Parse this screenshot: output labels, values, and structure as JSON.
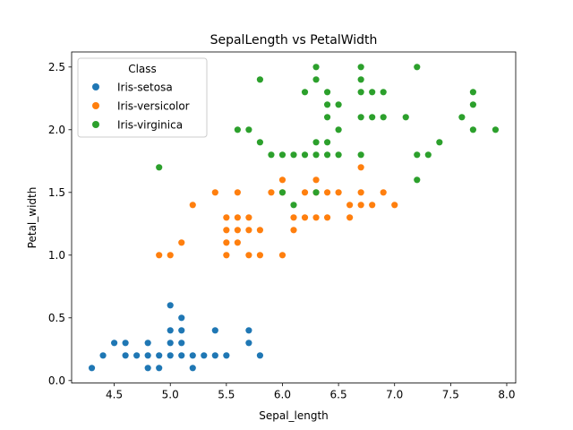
{
  "chart_data": {
    "type": "scatter",
    "title": "SepalLength vs PetalWidth",
    "xlabel": "Sepal_length",
    "ylabel": "Petal_width",
    "xlim": [
      4.12,
      8.08
    ],
    "ylim": [
      -0.02,
      2.62
    ],
    "xticks": [
      4.5,
      5.0,
      5.5,
      6.0,
      6.5,
      7.0,
      7.5,
      8.0
    ],
    "yticks": [
      0.0,
      0.5,
      1.0,
      1.5,
      2.0,
      2.5
    ],
    "legend": {
      "title": "Class",
      "position": "top-left"
    },
    "grid": false,
    "series": [
      {
        "name": "Iris-setosa",
        "color": "#1f77b4",
        "points": [
          [
            4.3,
            0.1
          ],
          [
            4.4,
            0.2
          ],
          [
            4.5,
            0.3
          ],
          [
            4.6,
            0.2
          ],
          [
            4.6,
            0.3
          ],
          [
            4.7,
            0.2
          ],
          [
            4.8,
            0.1
          ],
          [
            4.8,
            0.2
          ],
          [
            4.8,
            0.3
          ],
          [
            4.9,
            0.1
          ],
          [
            4.9,
            0.2
          ],
          [
            5.0,
            0.2
          ],
          [
            5.0,
            0.3
          ],
          [
            5.0,
            0.4
          ],
          [
            5.0,
            0.6
          ],
          [
            5.1,
            0.2
          ],
          [
            5.1,
            0.3
          ],
          [
            5.1,
            0.4
          ],
          [
            5.1,
            0.5
          ],
          [
            5.2,
            0.1
          ],
          [
            5.2,
            0.2
          ],
          [
            5.3,
            0.2
          ],
          [
            5.4,
            0.2
          ],
          [
            5.4,
            0.4
          ],
          [
            5.5,
            0.2
          ],
          [
            5.7,
            0.3
          ],
          [
            5.7,
            0.4
          ],
          [
            5.8,
            0.2
          ]
        ]
      },
      {
        "name": "Iris-versicolor",
        "color": "#ff7f0e",
        "points": [
          [
            4.9,
            1.0
          ],
          [
            5.0,
            1.0
          ],
          [
            5.1,
            1.1
          ],
          [
            5.2,
            1.4
          ],
          [
            5.4,
            1.5
          ],
          [
            5.5,
            1.0
          ],
          [
            5.5,
            1.1
          ],
          [
            5.5,
            1.2
          ],
          [
            5.5,
            1.3
          ],
          [
            5.6,
            1.1
          ],
          [
            5.6,
            1.2
          ],
          [
            5.6,
            1.3
          ],
          [
            5.6,
            1.5
          ],
          [
            5.7,
            1.0
          ],
          [
            5.7,
            1.2
          ],
          [
            5.7,
            1.3
          ],
          [
            5.8,
            1.0
          ],
          [
            5.8,
            1.2
          ],
          [
            5.9,
            1.5
          ],
          [
            6.0,
            1.0
          ],
          [
            6.0,
            1.5
          ],
          [
            6.0,
            1.6
          ],
          [
            6.1,
            1.2
          ],
          [
            6.1,
            1.3
          ],
          [
            6.2,
            1.3
          ],
          [
            6.2,
            1.5
          ],
          [
            6.3,
            1.3
          ],
          [
            6.3,
            1.5
          ],
          [
            6.3,
            1.6
          ],
          [
            6.4,
            1.3
          ],
          [
            6.4,
            1.5
          ],
          [
            6.5,
            1.5
          ],
          [
            6.6,
            1.3
          ],
          [
            6.6,
            1.4
          ],
          [
            6.7,
            1.4
          ],
          [
            6.7,
            1.5
          ],
          [
            6.7,
            1.7
          ],
          [
            6.8,
            1.4
          ],
          [
            6.9,
            1.5
          ],
          [
            7.0,
            1.4
          ]
        ]
      },
      {
        "name": "Iris-virginica",
        "color": "#2ca02c",
        "points": [
          [
            4.9,
            1.7
          ],
          [
            5.6,
            2.0
          ],
          [
            5.7,
            2.0
          ],
          [
            5.8,
            1.9
          ],
          [
            5.8,
            2.4
          ],
          [
            5.9,
            1.8
          ],
          [
            6.0,
            1.5
          ],
          [
            6.0,
            1.8
          ],
          [
            6.1,
            1.4
          ],
          [
            6.1,
            1.8
          ],
          [
            6.2,
            1.8
          ],
          [
            6.2,
            2.3
          ],
          [
            6.3,
            1.5
          ],
          [
            6.3,
            1.8
          ],
          [
            6.3,
            1.9
          ],
          [
            6.3,
            2.4
          ],
          [
            6.3,
            2.5
          ],
          [
            6.4,
            1.8
          ],
          [
            6.4,
            1.9
          ],
          [
            6.4,
            2.1
          ],
          [
            6.4,
            2.2
          ],
          [
            6.4,
            2.3
          ],
          [
            6.5,
            1.8
          ],
          [
            6.5,
            2.0
          ],
          [
            6.5,
            2.2
          ],
          [
            6.7,
            1.8
          ],
          [
            6.7,
            2.1
          ],
          [
            6.7,
            2.3
          ],
          [
            6.7,
            2.4
          ],
          [
            6.7,
            2.5
          ],
          [
            6.8,
            2.1
          ],
          [
            6.8,
            2.3
          ],
          [
            6.9,
            2.1
          ],
          [
            6.9,
            2.3
          ],
          [
            7.1,
            2.1
          ],
          [
            7.2,
            1.6
          ],
          [
            7.2,
            1.8
          ],
          [
            7.2,
            2.5
          ],
          [
            7.3,
            1.8
          ],
          [
            7.4,
            1.9
          ],
          [
            7.6,
            2.1
          ],
          [
            7.7,
            2.0
          ],
          [
            7.7,
            2.2
          ],
          [
            7.7,
            2.3
          ],
          [
            7.9,
            2.0
          ]
        ]
      }
    ]
  }
}
